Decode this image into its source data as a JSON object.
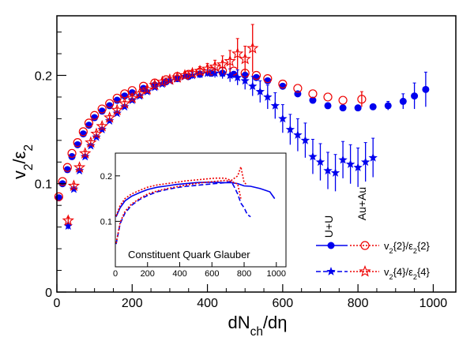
{
  "chart_data": {
    "type": "scatter",
    "xlabel": "dN_ch/dη",
    "ylabel": "v_2/ε_2",
    "xlim": [
      0,
      1060
    ],
    "ylim": [
      0,
      0.255
    ],
    "x_ticks": [
      0,
      200,
      400,
      600,
      800,
      1000
    ],
    "y_ticks": [
      0,
      0.1,
      0.2
    ],
    "x_tick_labels": [
      "0",
      "200",
      "400",
      "600",
      "800",
      "1000"
    ],
    "y_tick_labels": [
      "0",
      "0.1",
      "0.2"
    ],
    "annotations": [
      "U+U",
      "Au+Au"
    ],
    "legend": {
      "placement": "bottom-right",
      "entries": [
        {
          "label": "v_2{2}/ε_2{2}",
          "series": [
            "UU_v22",
            "AuAu_v22"
          ]
        },
        {
          "label": "v_2{4}/ε_2{4}",
          "series": [
            "UU_v24",
            "AuAu_v24"
          ]
        }
      ]
    },
    "colors": {
      "UU": "#0000ee",
      "AuAu": "#ee0000"
    },
    "series": [
      {
        "id": "UU_v22",
        "system": "U+U",
        "marker": "filled-circle",
        "x": [
          5,
          15,
          28,
          40,
          55,
          70,
          85,
          100,
          120,
          140,
          160,
          180,
          200,
          230,
          260,
          290,
          320,
          350,
          380,
          410,
          440,
          470,
          500,
          530,
          560,
          600,
          640,
          680,
          720,
          760,
          800,
          840,
          880,
          920,
          950,
          980
        ],
        "y": [
          0.087,
          0.1,
          0.113,
          0.125,
          0.136,
          0.146,
          0.154,
          0.161,
          0.167,
          0.172,
          0.177,
          0.181,
          0.184,
          0.188,
          0.191,
          0.194,
          0.197,
          0.199,
          0.201,
          0.202,
          0.202,
          0.201,
          0.2,
          0.198,
          0.195,
          0.19,
          0.183,
          0.177,
          0.172,
          0.17,
          0.17,
          0.171,
          0.172,
          0.176,
          0.181,
          0.187
        ],
        "err": [
          0,
          0,
          0,
          0,
          0,
          0,
          0,
          0,
          0,
          0,
          0,
          0,
          0,
          0,
          0,
          0,
          0,
          0,
          0,
          0,
          0,
          0,
          0,
          0,
          0,
          0,
          0,
          0,
          0,
          0,
          0,
          0,
          0.004,
          0.007,
          0.012,
          0.016
        ]
      },
      {
        "id": "AuAu_v22",
        "system": "Au+Au",
        "marker": "open-circle",
        "x": [
          5,
          15,
          28,
          40,
          55,
          70,
          85,
          100,
          120,
          140,
          160,
          180,
          200,
          230,
          260,
          290,
          320,
          350,
          380,
          410,
          440,
          470,
          500,
          530,
          560,
          600,
          640,
          680,
          720,
          760,
          810
        ],
        "y": [
          0.088,
          0.102,
          0.115,
          0.128,
          0.138,
          0.148,
          0.156,
          0.163,
          0.169,
          0.174,
          0.179,
          0.183,
          0.186,
          0.19,
          0.193,
          0.196,
          0.199,
          0.201,
          0.203,
          0.204,
          0.204,
          0.204,
          0.202,
          0.2,
          0.197,
          0.192,
          0.188,
          0.183,
          0.18,
          0.177,
          0.178
        ],
        "err": [
          0,
          0,
          0,
          0,
          0,
          0,
          0,
          0,
          0,
          0,
          0,
          0,
          0,
          0,
          0,
          0,
          0,
          0,
          0,
          0,
          0,
          0,
          0,
          0,
          0,
          0,
          0,
          0,
          0,
          0,
          0.007
        ]
      },
      {
        "id": "UU_v24",
        "system": "U+U",
        "marker": "filled-star",
        "x": [
          30,
          45,
          60,
          75,
          90,
          105,
          120,
          140,
          160,
          180,
          200,
          220,
          240,
          260,
          280,
          300,
          320,
          340,
          360,
          380,
          400,
          420,
          440,
          460,
          480,
          500,
          520,
          540,
          560,
          580,
          600,
          620,
          640,
          660,
          680,
          700,
          720,
          740,
          760,
          780,
          800,
          820,
          840
        ],
        "y": [
          0.061,
          0.095,
          0.112,
          0.125,
          0.135,
          0.143,
          0.15,
          0.158,
          0.165,
          0.171,
          0.177,
          0.181,
          0.185,
          0.189,
          0.192,
          0.195,
          0.197,
          0.199,
          0.2,
          0.201,
          0.202,
          0.202,
          0.202,
          0.2,
          0.198,
          0.195,
          0.19,
          0.185,
          0.18,
          0.172,
          0.16,
          0.15,
          0.145,
          0.14,
          0.125,
          0.12,
          0.112,
          0.11,
          0.122,
          0.118,
          0.115,
          0.12,
          0.124
        ],
        "err": [
          0.003,
          0.002,
          0.002,
          0.002,
          0.002,
          0.002,
          0.002,
          0.002,
          0.002,
          0.002,
          0.002,
          0.002,
          0.002,
          0.002,
          0.002,
          0.002,
          0.002,
          0.002,
          0.003,
          0.003,
          0.003,
          0.004,
          0.005,
          0.006,
          0.007,
          0.008,
          0.009,
          0.01,
          0.011,
          0.012,
          0.013,
          0.014,
          0.015,
          0.016,
          0.016,
          0.017,
          0.017,
          0.017,
          0.017,
          0.018,
          0.018,
          0.018,
          0.018
        ]
      },
      {
        "id": "AuAu_v24",
        "system": "Au+Au",
        "marker": "open-star",
        "x": [
          30,
          45,
          60,
          75,
          90,
          105,
          120,
          140,
          160,
          180,
          200,
          220,
          240,
          260,
          280,
          300,
          320,
          340,
          360,
          380,
          400,
          420,
          440,
          460,
          480,
          500,
          520
        ],
        "y": [
          0.066,
          0.098,
          0.115,
          0.128,
          0.138,
          0.146,
          0.153,
          0.161,
          0.168,
          0.174,
          0.179,
          0.183,
          0.187,
          0.191,
          0.194,
          0.196,
          0.198,
          0.2,
          0.202,
          0.204,
          0.206,
          0.208,
          0.21,
          0.213,
          0.22,
          0.215,
          0.225
        ],
        "err": [
          0.003,
          0.002,
          0.002,
          0.002,
          0.002,
          0.002,
          0.002,
          0.002,
          0.002,
          0.002,
          0.002,
          0.002,
          0.002,
          0.002,
          0.002,
          0.002,
          0.002,
          0.003,
          0.003,
          0.004,
          0.005,
          0.006,
          0.008,
          0.01,
          0.014,
          0.012,
          0.022
        ]
      }
    ],
    "inset": {
      "type": "line",
      "title": "Constituent Quark Glauber",
      "xlim": [
        0,
        1060
      ],
      "ylim": [
        0,
        0.25
      ],
      "x_ticks": [
        0,
        200,
        400,
        600,
        800,
        1000
      ],
      "y_ticks": [
        0.1,
        0.2
      ],
      "x_tick_labels": [
        "0",
        "200",
        "400",
        "600",
        "800",
        "1000"
      ],
      "y_tick_labels": [
        "0.1",
        "0.2"
      ],
      "series": [
        {
          "id": "inset_UU_v22",
          "style": "solid",
          "color": "#0000ee",
          "x": [
            5,
            30,
            60,
            100,
            150,
            200,
            260,
            320,
            380,
            440,
            500,
            560,
            620,
            680,
            720,
            760,
            800,
            840,
            900,
            960,
            990
          ],
          "y": [
            0.11,
            0.13,
            0.145,
            0.155,
            0.163,
            0.17,
            0.175,
            0.178,
            0.181,
            0.183,
            0.185,
            0.186,
            0.186,
            0.185,
            0.185,
            0.183,
            0.178,
            0.177,
            0.172,
            0.165,
            0.15
          ]
        },
        {
          "id": "inset_AuAu_v22",
          "style": "dotted",
          "color": "#ee0000",
          "x": [
            5,
            30,
            60,
            100,
            150,
            200,
            260,
            320,
            380,
            440,
            500,
            560,
            620,
            680,
            720,
            760,
            780,
            800,
            820
          ],
          "y": [
            0.112,
            0.135,
            0.15,
            0.16,
            0.168,
            0.175,
            0.18,
            0.183,
            0.186,
            0.189,
            0.191,
            0.193,
            0.195,
            0.195,
            0.19,
            0.2,
            0.22,
            0.185,
            0.18
          ]
        },
        {
          "id": "inset_UU_v24",
          "style": "dashed",
          "color": "#0000ee",
          "x": [
            5,
            30,
            60,
            100,
            150,
            200,
            260,
            320,
            380,
            440,
            500,
            560,
            620,
            680,
            720,
            740,
            760,
            780,
            800,
            820,
            840
          ],
          "y": [
            0.05,
            0.095,
            0.118,
            0.135,
            0.148,
            0.157,
            0.165,
            0.17,
            0.174,
            0.177,
            0.179,
            0.181,
            0.183,
            0.185,
            0.188,
            0.175,
            0.16,
            0.14,
            0.13,
            0.115,
            0.11
          ]
        },
        {
          "id": "inset_AuAu_v24",
          "style": "dotted",
          "color": "#ee0000",
          "x": [
            5,
            30,
            60,
            100,
            150,
            200,
            260,
            320,
            380,
            440,
            500,
            560,
            620,
            680,
            720,
            760,
            780
          ],
          "y": [
            0.052,
            0.098,
            0.122,
            0.138,
            0.15,
            0.16,
            0.167,
            0.172,
            0.176,
            0.18,
            0.183,
            0.186,
            0.188,
            0.19,
            0.188,
            0.182,
            0.15
          ]
        }
      ]
    }
  }
}
